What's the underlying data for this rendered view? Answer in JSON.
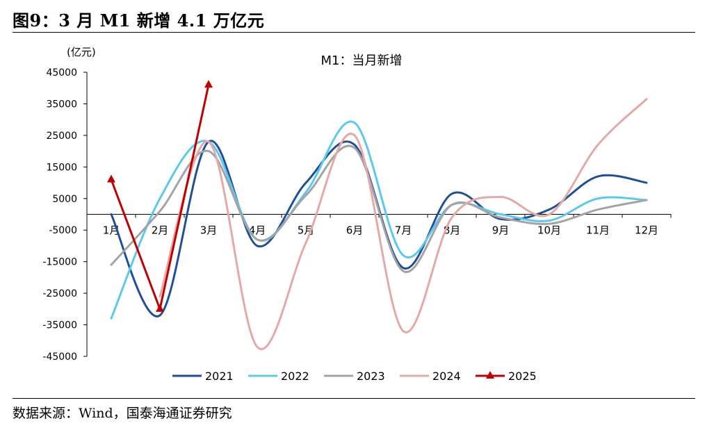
{
  "figure": {
    "title": "图9：3 月 M1 新增 4.1 万亿元",
    "source": "数据来源：Wind，国泰海通证券研究"
  },
  "chart_data": {
    "type": "line",
    "title": "M1：当月新增",
    "ylabel": "(亿元)",
    "xlabel": "",
    "ylim": [
      -45000,
      45000
    ],
    "yticks": [
      45000,
      35000,
      25000,
      15000,
      5000,
      -5000,
      -15000,
      -25000,
      -35000,
      -45000
    ],
    "categories": [
      "1月",
      "2月",
      "3月",
      "4月",
      "5月",
      "6月",
      "7月",
      "8月",
      "9月",
      "10月",
      "11月",
      "12月"
    ],
    "legend_position": "bottom",
    "grid": false,
    "series": [
      {
        "name": "2021",
        "color": "#1F4E9A",
        "marker": "none",
        "values": [
          0,
          -32000,
          23000,
          -10000,
          10000,
          22000,
          -17000,
          6500,
          -1500,
          1500,
          12000,
          10000
        ]
      },
      {
        "name": "2022",
        "color": "#5BC8EE",
        "marker": "none",
        "values": [
          -33000,
          5000,
          23000,
          -8000,
          7000,
          29000,
          -13000,
          3000,
          0,
          -2000,
          5000,
          4500
        ]
      },
      {
        "name": "2023",
        "color": "#A3A3A3",
        "marker": "none",
        "values": [
          -16000,
          1000,
          20000,
          -8000,
          6000,
          21000,
          -18000,
          3000,
          -1000,
          -3000,
          1500,
          4500
        ]
      },
      {
        "name": "2024",
        "color": "#E4A8A5",
        "marker": "none",
        "values": [
          null,
          -26000,
          23000,
          -42000,
          -9000,
          25000,
          -37000,
          -1000,
          5500,
          0,
          22000,
          36500
        ]
      },
      {
        "name": "2025",
        "color": "#C00000",
        "marker": "triangle",
        "values": [
          11000,
          -30000,
          41000,
          null,
          null,
          null,
          null,
          null,
          null,
          null,
          null,
          null
        ]
      }
    ]
  }
}
